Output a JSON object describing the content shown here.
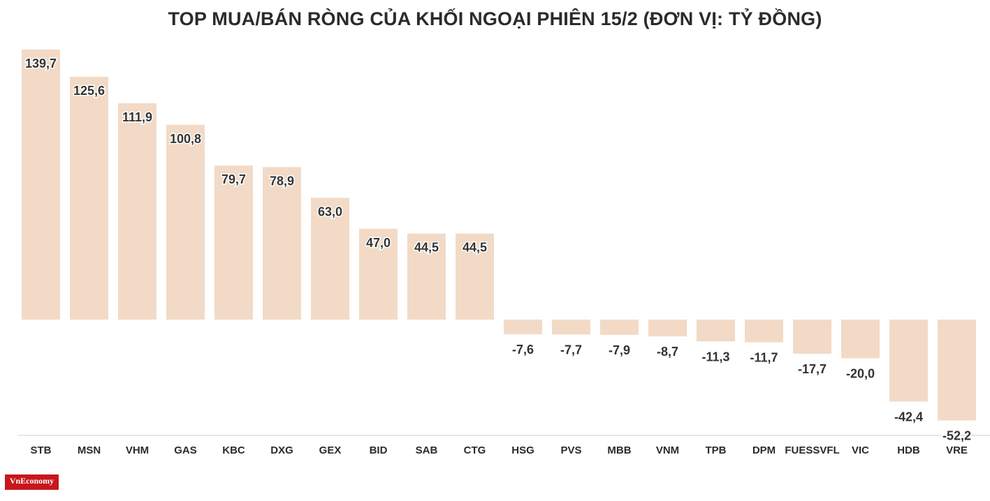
{
  "title": "TOP MUA/BÁN RÒNG CỦA KHỐI NGOẠI PHIÊN 15/2 (ĐƠN VỊ: TỶ ĐỒNG)",
  "logo": "VnEconomy",
  "colors": {
    "bar": "#f2dac6",
    "text": "#2b2b2b",
    "label": "#333333",
    "axis": "#cccccc",
    "brand": "#c8161d"
  },
  "chart_data": {
    "type": "bar",
    "title": "TOP MUA/BÁN RÒNG CỦA KHỐI NGOẠI PHIÊN 15/2 (ĐƠN VỊ: TỶ ĐỒNG)",
    "xlabel": "",
    "ylabel": "",
    "categories": [
      "STB",
      "MSN",
      "VHM",
      "GAS",
      "KBC",
      "DXG",
      "GEX",
      "BID",
      "SAB",
      "CTG",
      "HSG",
      "PVS",
      "MBB",
      "VNM",
      "TPB",
      "DPM",
      "FUESSVFL",
      "VIC",
      "HDB",
      "VRE"
    ],
    "values": [
      139.7,
      125.6,
      111.9,
      100.8,
      79.7,
      78.9,
      63.0,
      47.0,
      44.5,
      44.5,
      -7.6,
      -7.7,
      -7.9,
      -8.7,
      -11.3,
      -11.7,
      -17.7,
      -20.0,
      -42.4,
      -52.2
    ],
    "value_labels": [
      "139,7",
      "125,6",
      "111,9",
      "100,8",
      "79,7",
      "78,9",
      "63,0",
      "47,0",
      "44,5",
      "44,5",
      "-7,6",
      "-7,7",
      "-7,9",
      "-8,7",
      "-11,3",
      "-11,7",
      "-17,7",
      "-20,0",
      "-42,4",
      "-52,2"
    ],
    "ylim": [
      -52.2,
      139.7
    ],
    "grid": false,
    "legend": "none"
  }
}
